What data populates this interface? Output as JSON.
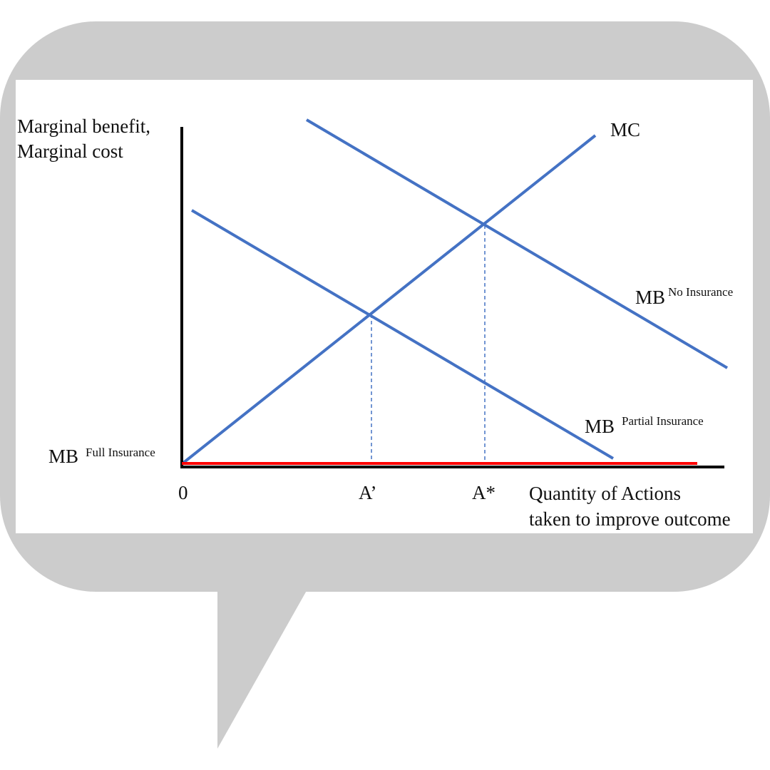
{
  "colors": {
    "bubble": "#cccccc",
    "panel": "#ffffff",
    "axis": "#000000",
    "curve": "#4472c4",
    "full_insurance": "#ff0000",
    "guide": "#4472c4"
  },
  "diagram": {
    "y_axis_label_line1": "Marginal benefit,",
    "y_axis_label_line2": "Marginal cost",
    "x_axis_label_line1": "Quantity of Actions",
    "x_axis_label_line2": "taken to improve outcome",
    "origin_label": "0",
    "tick_a_prime": "A’",
    "tick_a_star": "A*",
    "curves": {
      "mc": {
        "label": "MC"
      },
      "mb_no": {
        "base": "MB",
        "sup": "No Insurance"
      },
      "mb_partial": {
        "base": "MB",
        "sup": "Partial Insurance"
      },
      "mb_full": {
        "base": "MB",
        "sup": "Full Insurance"
      }
    }
  }
}
